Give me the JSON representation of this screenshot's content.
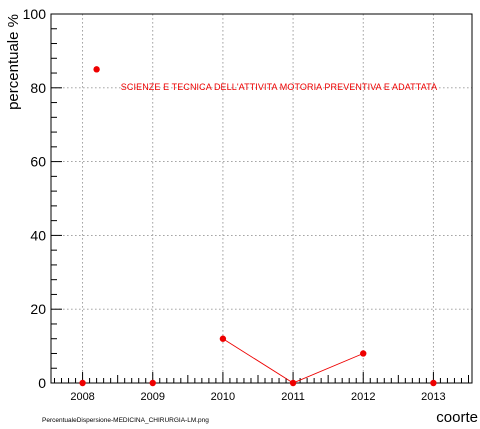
{
  "chart_data": {
    "type": "line",
    "title": "",
    "xlabel": "coorte",
    "ylabel": "percentuale %",
    "xlim": [
      2007.55,
      2013.55
    ],
    "ylim": [
      0,
      100
    ],
    "x_ticks": [
      "2008",
      "2009",
      "2010",
      "2011",
      "2012",
      "2013"
    ],
    "y_ticks": [
      "0",
      "20",
      "40",
      "60",
      "80",
      "100"
    ],
    "grid": true,
    "caption": "PercentualeDispersione-MEDICINA_CHIRURGIA-LM.png",
    "colors": {
      "series": "#ee0000",
      "grid": "#9a9a9a",
      "frame": "#000000"
    },
    "series": [
      {
        "name": "SCIENZE E TECNICA DELL'ATTIVITA MOTORIA PREVENTIVA E ADATTATA",
        "marker": "circle",
        "points": [
          {
            "x": 2008,
            "y": 0,
            "connected": false
          },
          {
            "x": 2008.2,
            "y": 85,
            "connected": false
          },
          {
            "x": 2009,
            "y": 0,
            "connected": false
          },
          {
            "x": 2010,
            "y": 12,
            "connected": true
          },
          {
            "x": 2011,
            "y": 0,
            "connected": true
          },
          {
            "x": 2012,
            "y": 8,
            "connected": true
          },
          {
            "x": 2013,
            "y": 0,
            "connected": false
          }
        ]
      }
    ]
  }
}
